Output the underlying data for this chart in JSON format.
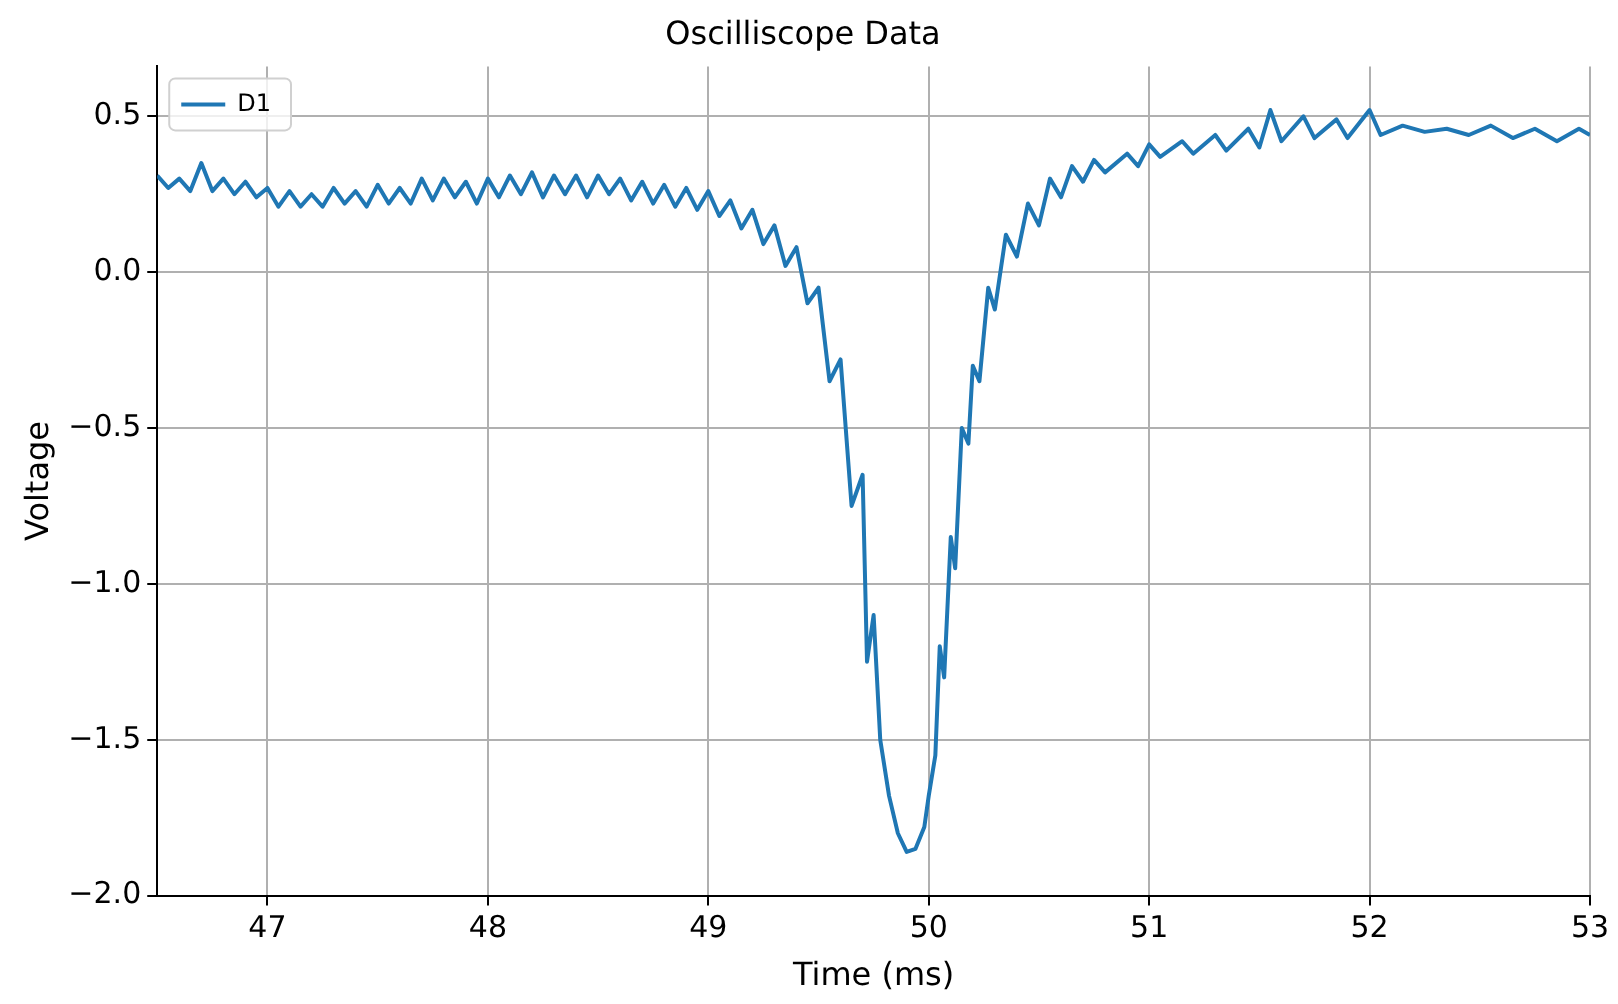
{
  "chart_data": {
    "type": "line",
    "title": "Oscilliscope Data",
    "xlabel": "Time (ms)",
    "ylabel": "Voltage",
    "x": [
      46.5,
      46.55,
      46.6,
      46.65,
      46.7,
      46.75,
      46.8,
      46.85,
      46.9,
      46.95,
      47,
      47.05,
      47.1,
      47.15,
      47.2,
      47.25,
      47.3,
      47.35,
      47.4,
      47.45,
      47.5,
      47.55,
      47.6,
      47.65,
      47.7,
      47.75,
      47.8,
      47.85,
      47.9,
      47.95,
      48,
      48.05,
      48.1,
      48.15,
      48.2,
      48.25,
      48.3,
      48.35,
      48.4,
      48.45,
      48.5,
      48.55,
      48.6,
      48.65,
      48.7,
      48.75,
      48.8,
      48.85,
      48.9,
      48.95,
      49,
      49.05,
      49.1,
      49.15,
      49.2,
      49.25,
      49.3,
      49.35,
      49.4,
      49.45,
      49.5,
      49.55,
      49.6,
      49.65,
      49.7,
      49.72,
      49.75,
      49.78,
      49.82,
      49.86,
      49.9,
      49.94,
      49.98,
      50,
      50.03,
      50.05,
      50.07,
      50.1,
      50.12,
      50.15,
      50.18,
      50.2,
      50.23,
      50.27,
      50.3,
      50.35,
      50.4,
      50.45,
      50.5,
      50.55,
      50.6,
      50.65,
      50.7,
      50.75,
      50.8,
      50.9,
      50.95,
      51,
      51.05,
      51.15,
      51.2,
      51.3,
      51.35,
      51.45,
      51.5,
      51.55,
      51.6,
      51.7,
      51.75,
      51.85,
      51.9,
      52,
      52.05,
      52.15,
      52.25,
      52.35,
      52.45,
      52.55,
      52.65,
      52.75,
      52.85,
      52.95,
      53
    ],
    "series": [
      {
        "name": "D1",
        "color": "#1f77b4",
        "values": [
          0.31,
          0.27,
          0.3,
          0.26,
          0.35,
          0.26,
          0.3,
          0.25,
          0.29,
          0.24,
          0.27,
          0.21,
          0.26,
          0.21,
          0.25,
          0.21,
          0.27,
          0.22,
          0.26,
          0.21,
          0.28,
          0.22,
          0.27,
          0.22,
          0.3,
          0.23,
          0.3,
          0.24,
          0.29,
          0.22,
          0.3,
          0.24,
          0.31,
          0.25,
          0.32,
          0.24,
          0.31,
          0.25,
          0.31,
          0.24,
          0.31,
          0.25,
          0.3,
          0.23,
          0.29,
          0.22,
          0.28,
          0.21,
          0.27,
          0.2,
          0.26,
          0.18,
          0.23,
          0.14,
          0.2,
          0.09,
          0.15,
          0.02,
          0.08,
          -0.1,
          -0.05,
          -0.35,
          -0.28,
          -0.75,
          -0.65,
          -1.25,
          -1.1,
          -1.5,
          -1.68,
          -1.8,
          -1.86,
          -1.85,
          -1.78,
          -1.68,
          -1.55,
          -1.2,
          -1.3,
          -0.85,
          -0.95,
          -0.5,
          -0.55,
          -0.3,
          -0.35,
          -0.05,
          -0.12,
          0.12,
          0.05,
          0.22,
          0.15,
          0.3,
          0.24,
          0.34,
          0.29,
          0.36,
          0.32,
          0.38,
          0.34,
          0.41,
          0.37,
          0.42,
          0.38,
          0.44,
          0.39,
          0.46,
          0.4,
          0.52,
          0.42,
          0.5,
          0.43,
          0.49,
          0.43,
          0.52,
          0.44,
          0.47,
          0.45,
          0.46,
          0.44,
          0.47,
          0.43,
          0.46,
          0.42,
          0.46,
          0.44
        ]
      }
    ],
    "xlim": [
      46.5,
      53
    ],
    "xticks": [
      47,
      48,
      49,
      50,
      51,
      52,
      53
    ],
    "ylim": [
      -2,
      0.66
    ],
    "yticks": [
      {
        "value": -2,
        "label": "−2.0"
      },
      {
        "value": -1.5,
        "label": "−1.5"
      },
      {
        "value": -1,
        "label": "−1.0"
      },
      {
        "value": -0.5,
        "label": "−0.5"
      },
      {
        "value": 0,
        "label": "0.0"
      },
      {
        "value": 0.5,
        "label": "0.5"
      }
    ],
    "grid": true,
    "legend": "top left",
    "marker": "none",
    "line_style": "solid"
  }
}
